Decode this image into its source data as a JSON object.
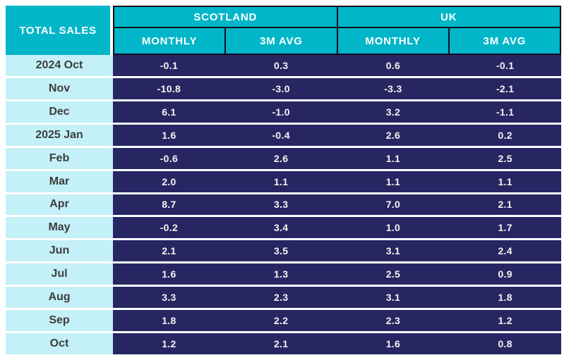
{
  "table": {
    "title": "TOTAL SALES",
    "col_groups": [
      {
        "label": "SCOTLAND",
        "subcols": [
          "MONTHLY",
          "3M AVG"
        ]
      },
      {
        "label": "UK",
        "subcols": [
          "MONTHLY",
          "3M AVG"
        ]
      }
    ],
    "rows": [
      {
        "month": "2024 Oct",
        "values": [
          "-0.1",
          "0.3",
          "0.6",
          "-0.1"
        ]
      },
      {
        "month": "Nov",
        "values": [
          "-10.8",
          "-3.0",
          "-3.3",
          "-2.1"
        ]
      },
      {
        "month": "Dec",
        "values": [
          "6.1",
          "-1.0",
          "3.2",
          "-1.1"
        ]
      },
      {
        "month": "2025 Jan",
        "values": [
          "1.6",
          "-0.4",
          "2.6",
          "0.2"
        ]
      },
      {
        "month": "Feb",
        "values": [
          "-0.6",
          "2.6",
          "1.1",
          "2.5"
        ]
      },
      {
        "month": "Mar",
        "values": [
          "2.0",
          "1.1",
          "1.1",
          "1.1"
        ]
      },
      {
        "month": "Apr",
        "values": [
          "8.7",
          "3.3",
          "7.0",
          "2.1"
        ]
      },
      {
        "month": "May",
        "values": [
          "-0.2",
          "3.4",
          "1.0",
          "1.7"
        ]
      },
      {
        "month": "Jun",
        "values": [
          "2.1",
          "3.5",
          "3.1",
          "2.4"
        ]
      },
      {
        "month": "Jul",
        "values": [
          "1.6",
          "1.3",
          "2.5",
          "0.9"
        ]
      },
      {
        "month": "Aug",
        "values": [
          "3.3",
          "2.3",
          "3.1",
          "1.8"
        ]
      },
      {
        "month": "Sep",
        "values": [
          "1.8",
          "2.2",
          "2.3",
          "1.2"
        ]
      },
      {
        "month": "Oct",
        "values": [
          "1.2",
          "2.1",
          "1.6",
          "0.8"
        ]
      }
    ]
  },
  "colors": {
    "teal_header": "#00B6C8",
    "navy_cell": "#272663",
    "light_cyan_cell": "#C4F0F8",
    "header_border": "#0D0D20",
    "month_text": "#3D3D3D",
    "value_text": "#F7F2EE",
    "separator": "#FFFFFF"
  },
  "chart_data": {
    "type": "table",
    "title": "TOTAL SALES",
    "categories": [
      "2024 Oct",
      "Nov",
      "Dec",
      "2025 Jan",
      "Feb",
      "Mar",
      "Apr",
      "May",
      "Jun",
      "Jul",
      "Aug",
      "Sep",
      "Oct"
    ],
    "series": [
      {
        "name": "Scotland Monthly",
        "values": [
          -0.1,
          -10.8,
          6.1,
          1.6,
          -0.6,
          2.0,
          8.7,
          -0.2,
          2.1,
          1.6,
          3.3,
          1.8,
          1.2
        ]
      },
      {
        "name": "Scotland 3M Avg",
        "values": [
          0.3,
          -3.0,
          -1.0,
          -0.4,
          2.6,
          1.1,
          3.3,
          3.4,
          3.5,
          1.3,
          2.3,
          2.2,
          2.1
        ]
      },
      {
        "name": "UK Monthly",
        "values": [
          0.6,
          -3.3,
          3.2,
          2.6,
          1.1,
          1.1,
          7.0,
          1.0,
          3.1,
          2.5,
          3.1,
          2.3,
          1.6
        ]
      },
      {
        "name": "UK 3M Avg",
        "values": [
          -0.1,
          -2.1,
          -1.1,
          0.2,
          2.5,
          1.1,
          2.1,
          1.7,
          2.4,
          0.9,
          1.8,
          1.2,
          0.8
        ]
      }
    ],
    "layout": "column groups: SCOTLAND (MONTHLY, 3M AVG), UK (MONTHLY, 3M AVG); row header column of months"
  }
}
